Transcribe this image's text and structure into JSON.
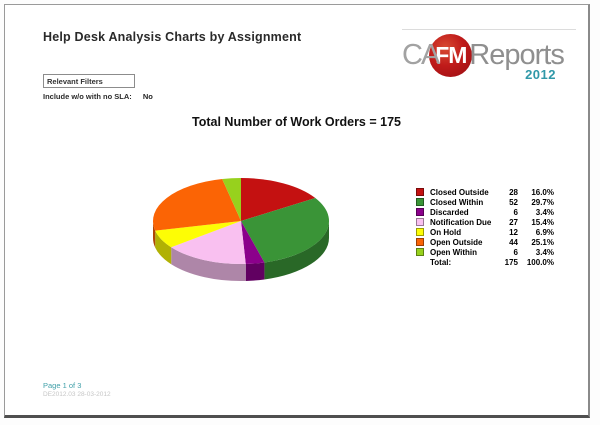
{
  "header": {
    "title": "Help Desk Analysis Charts by Assignment"
  },
  "logo": {
    "part_ca": "CA",
    "part_fm": "FM",
    "part_reports": "Reports",
    "year": "2012",
    "circle_color": "#b3151a",
    "year_color": "#2f98a8"
  },
  "filters": {
    "box_label": "Relevant Filters",
    "include_label": "Include w/o with no SLA:",
    "include_value": "No"
  },
  "chart_data": {
    "type": "pie",
    "is_3d": true,
    "title": "Total Number of Work Orders = 175",
    "total_value": 175,
    "start_angle_deg": -90,
    "direction": "clockwise",
    "legend_position": "right",
    "slices": [
      {
        "label": "Closed Outside",
        "count": 28,
        "percent": "16.0%",
        "color": "#c41111"
      },
      {
        "label": "Closed Within",
        "count": 52,
        "percent": "29.7%",
        "color": "#3a9437"
      },
      {
        "label": "Discarded",
        "count": 6,
        "percent": "3.4%",
        "color": "#8b008b"
      },
      {
        "label": "Notification Due",
        "count": 27,
        "percent": "15.4%",
        "color": "#f9c0f0"
      },
      {
        "label": "On Hold",
        "count": 12,
        "percent": "6.9%",
        "color": "#fdfd05"
      },
      {
        "label": "Open Outside",
        "count": 44,
        "percent": "25.1%",
        "color": "#fb6405"
      },
      {
        "label": "Open Within",
        "count": 6,
        "percent": "3.4%",
        "color": "#97d11d"
      }
    ],
    "total_row": {
      "label": "Total:",
      "count": "175",
      "percent": "100.0%"
    }
  },
  "footer": {
    "page_label": "Page 1 of 3",
    "version_label": "DE2012.03 28-03-2012"
  }
}
